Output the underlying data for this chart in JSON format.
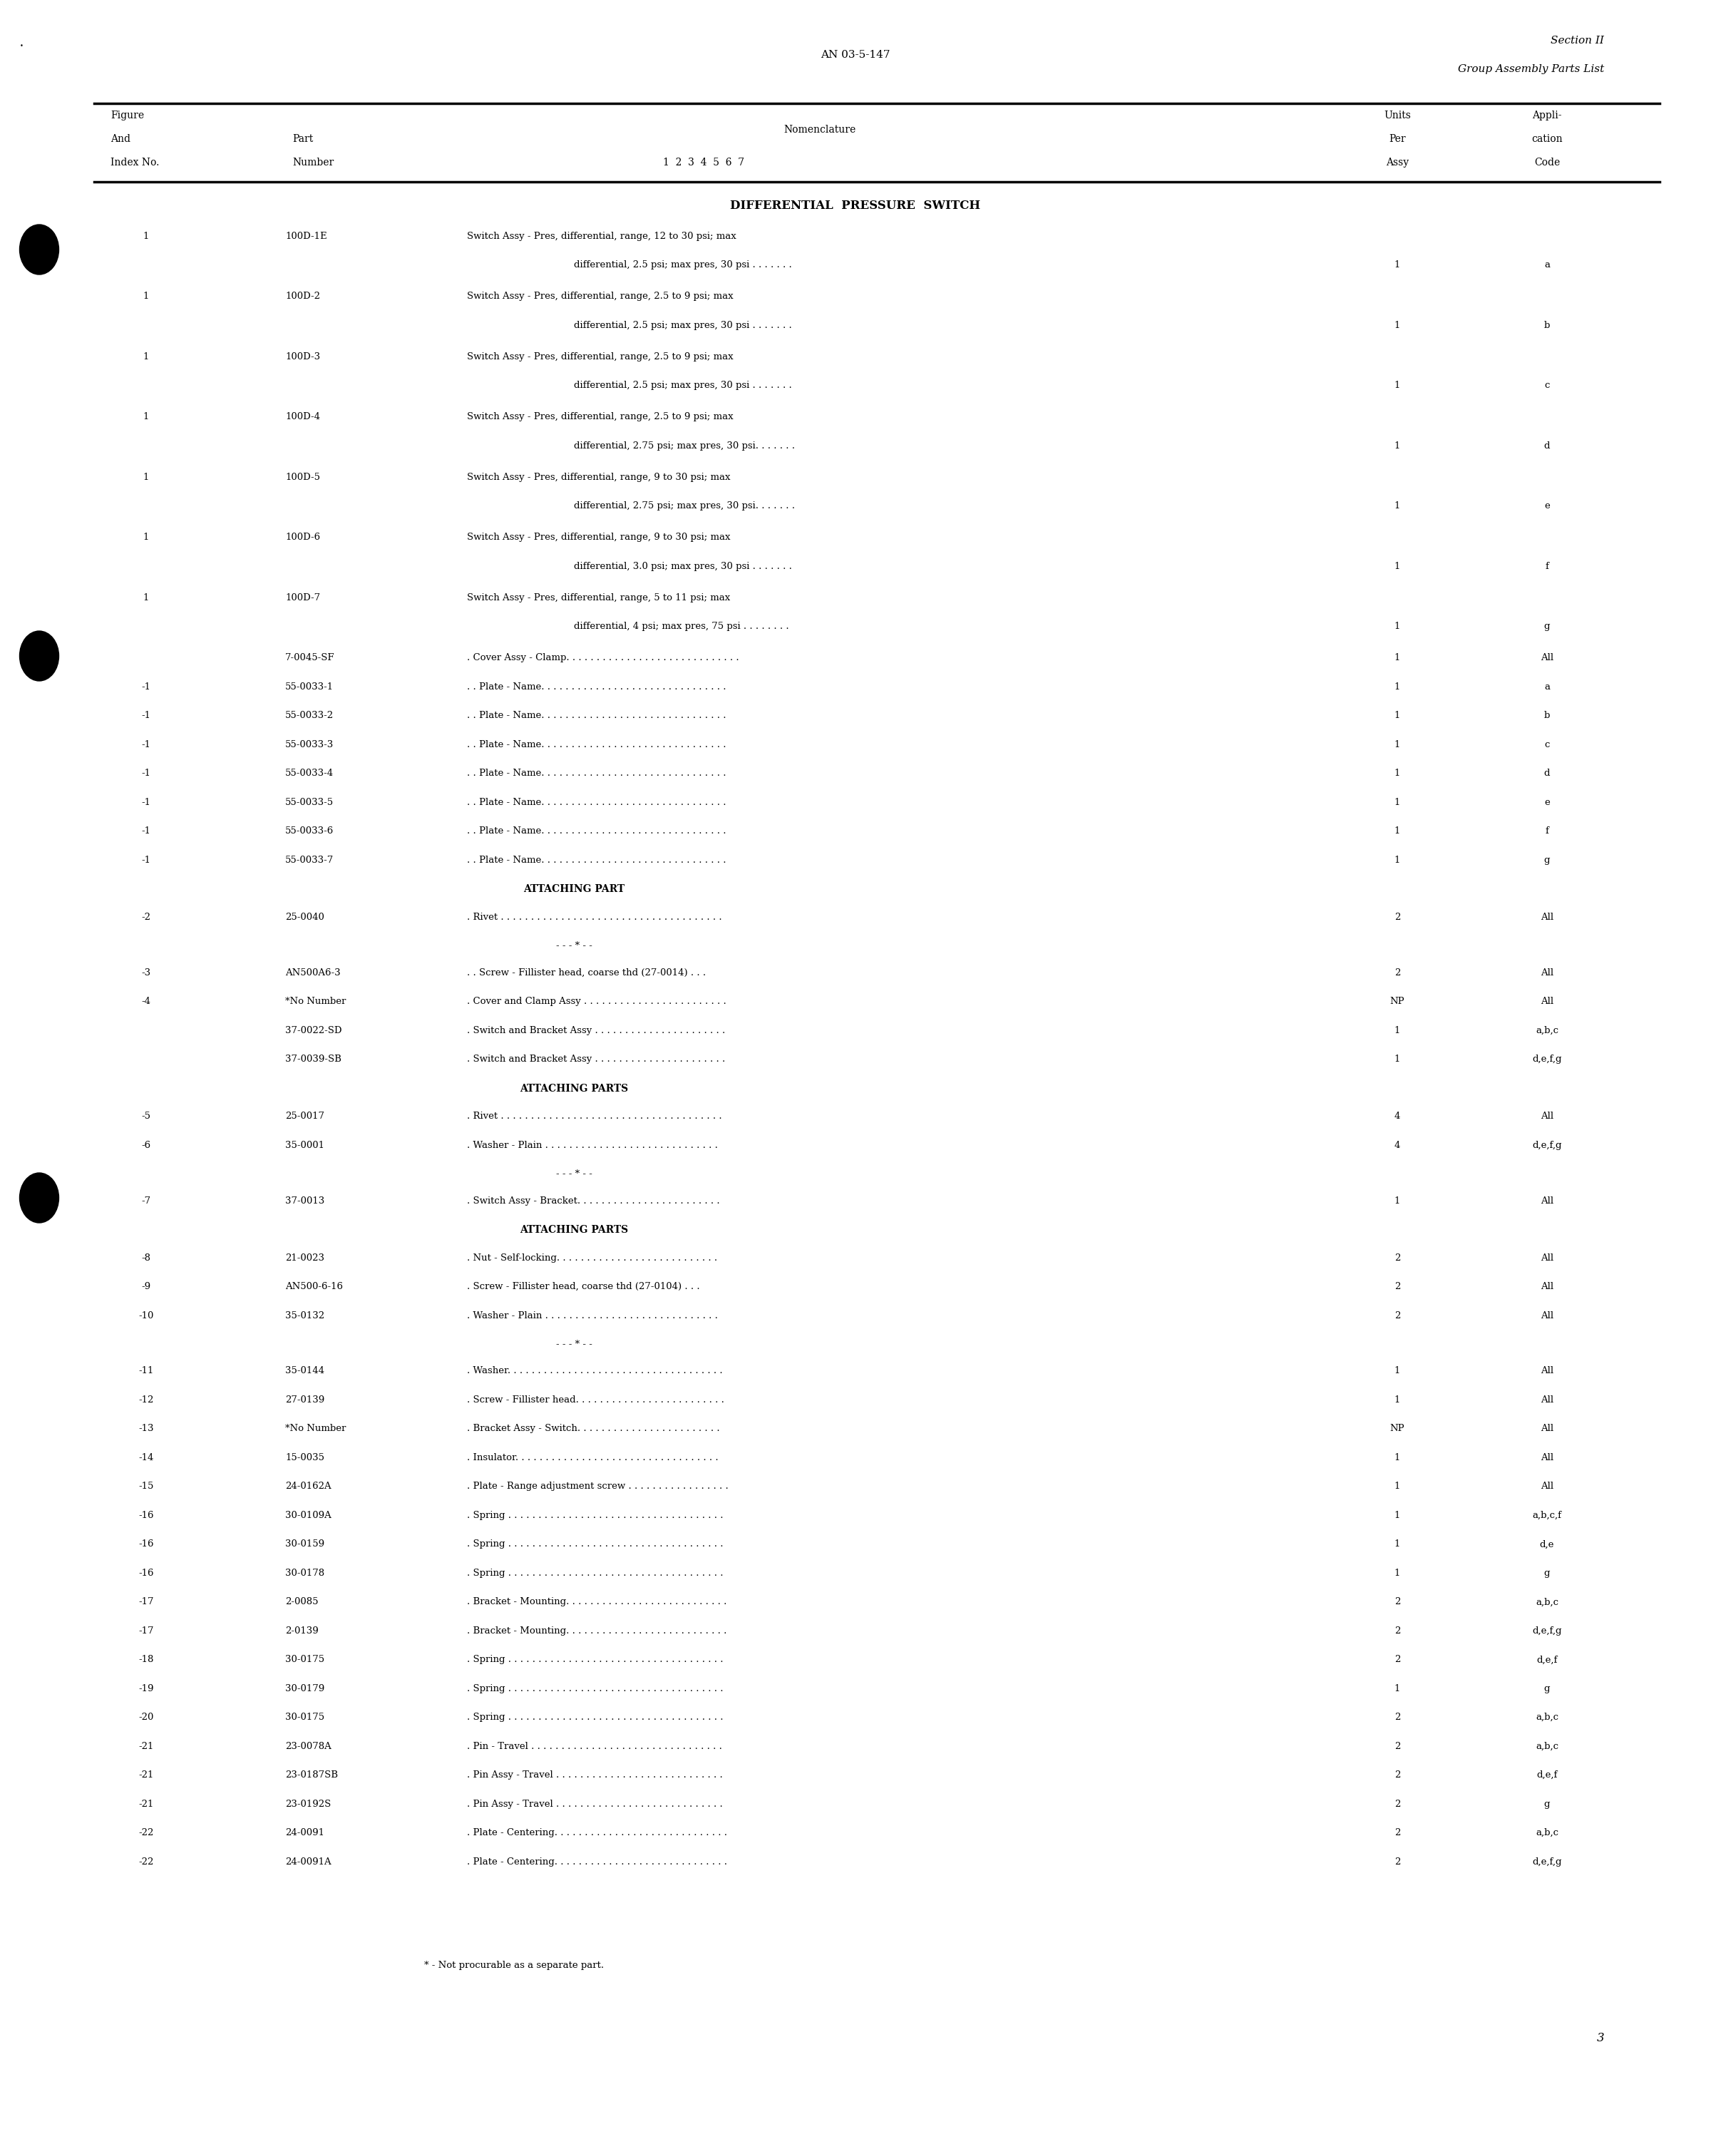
{
  "page_header_center": "AN 03-5-147",
  "page_header_right_line1": "Section II",
  "page_header_right_line2": "Group Assembly Parts List",
  "page_number": "3",
  "table_title": "DIFFERENTIAL  PRESSURE  SWITCH",
  "col_headers": {
    "fig_and_index": [
      "Figure",
      "And",
      "Index No."
    ],
    "part_number": [
      "Part",
      "Number"
    ],
    "nomenclature_label": "Nomenclature",
    "nomenclature_numbers": "1  2  3  4  5  6  7",
    "units_per_assy": [
      "Units",
      "Per",
      "Assy"
    ],
    "appli_cation_code": [
      "Appli-",
      "cation",
      "Code"
    ]
  },
  "rows": [
    {
      "fig": "1",
      "part": "100D-1E",
      "nom": "Switch Assy - Pres, differential, range, 12 to 30 psi; max",
      "nom2": "differential, 2.5 psi; max pres, 30 psi . . . . . . .",
      "units": "1",
      "app": "a"
    },
    {
      "fig": "1",
      "part": "100D-2",
      "nom": "Switch Assy - Pres, differential, range, 2.5 to 9 psi; max",
      "nom2": "differential, 2.5 psi; max pres, 30 psi . . . . . . .",
      "units": "1",
      "app": "b"
    },
    {
      "fig": "1",
      "part": "100D-3",
      "nom": "Switch Assy - Pres, differential, range, 2.5 to 9 psi; max",
      "nom2": "differential, 2.5 psi; max pres, 30 psi . . . . . . .",
      "units": "1",
      "app": "c"
    },
    {
      "fig": "1",
      "part": "100D-4",
      "nom": "Switch Assy - Pres, differential, range, 2.5 to 9 psi; max",
      "nom2": "differential, 2.75 psi; max pres, 30 psi. . . . . . .",
      "units": "1",
      "app": "d"
    },
    {
      "fig": "1",
      "part": "100D-5",
      "nom": "Switch Assy - Pres, differential, range, 9 to 30 psi; max",
      "nom2": "differential, 2.75 psi; max pres, 30 psi. . . . . . .",
      "units": "1",
      "app": "e"
    },
    {
      "fig": "1",
      "part": "100D-6",
      "nom": "Switch Assy - Pres, differential, range, 9 to 30 psi; max",
      "nom2": "differential, 3.0 psi; max pres, 30 psi . . . . . . .",
      "units": "1",
      "app": "f"
    },
    {
      "fig": "1",
      "part": "100D-7",
      "nom": "Switch Assy - Pres, differential, range, 5 to 11 psi; max",
      "nom2": "differential, 4 psi; max pres, 75 psi . . . . . . . .",
      "units": "1",
      "app": "g"
    },
    {
      "fig": "",
      "part": "7-0045-SF",
      "nom": ". Cover Assy - Clamp. . . . . . . . . . . . . . . . . . . . . . . . . . . . .",
      "nom2": "",
      "units": "1",
      "app": "All"
    },
    {
      "fig": "-1",
      "part": "55-0033-1",
      "nom": ". . Plate - Name. . . . . . . . . . . . . . . . . . . . . . . . . . . . . . .",
      "nom2": "",
      "units": "1",
      "app": "a"
    },
    {
      "fig": "-1",
      "part": "55-0033-2",
      "nom": ". . Plate - Name. . . . . . . . . . . . . . . . . . . . . . . . . . . . . . .",
      "nom2": "",
      "units": "1",
      "app": "b"
    },
    {
      "fig": "-1",
      "part": "55-0033-3",
      "nom": ". . Plate - Name. . . . . . . . . . . . . . . . . . . . . . . . . . . . . . .",
      "nom2": "",
      "units": "1",
      "app": "c"
    },
    {
      "fig": "-1",
      "part": "55-0033-4",
      "nom": ". . Plate - Name. . . . . . . . . . . . . . . . . . . . . . . . . . . . . . .",
      "nom2": "",
      "units": "1",
      "app": "d"
    },
    {
      "fig": "-1",
      "part": "55-0033-5",
      "nom": ". . Plate - Name. . . . . . . . . . . . . . . . . . . . . . . . . . . . . . .",
      "nom2": "",
      "units": "1",
      "app": "e"
    },
    {
      "fig": "-1",
      "part": "55-0033-6",
      "nom": ". . Plate - Name. . . . . . . . . . . . . . . . . . . . . . . . . . . . . . .",
      "nom2": "",
      "units": "1",
      "app": "f"
    },
    {
      "fig": "-1",
      "part": "55-0033-7",
      "nom": ". . Plate - Name. . . . . . . . . . . . . . . . . . . . . . . . . . . . . . .",
      "nom2": "",
      "units": "1",
      "app": "g"
    },
    {
      "fig": "",
      "part": "",
      "nom": "ATTACHING PART",
      "nom2": "",
      "units": "",
      "app": "",
      "section_header": true
    },
    {
      "fig": "-2",
      "part": "25-0040",
      "nom": ". Rivet . . . . . . . . . . . . . . . . . . . . . . . . . . . . . . . . . . . . .",
      "nom2": "",
      "units": "2",
      "app": "All"
    },
    {
      "fig": "",
      "part": "",
      "nom": "- - - * - -",
      "nom2": "",
      "units": "",
      "app": "",
      "separator": true
    },
    {
      "fig": "-3",
      "part": "AN500A6-3",
      "nom": ". . Screw - Fillister head, coarse thd (27-0014) . . .",
      "nom2": "",
      "units": "2",
      "app": "All"
    },
    {
      "fig": "-4",
      "part": "*No Number",
      "nom": ". Cover and Clamp Assy . . . . . . . . . . . . . . . . . . . . . . . .",
      "nom2": "",
      "units": "NP",
      "app": "All"
    },
    {
      "fig": "",
      "part": "37-0022-SD",
      "nom": ". Switch and Bracket Assy . . . . . . . . . . . . . . . . . . . . . .",
      "nom2": "",
      "units": "1",
      "app": "a,b,c"
    },
    {
      "fig": "",
      "part": "37-0039-SB",
      "nom": ". Switch and Bracket Assy . . . . . . . . . . . . . . . . . . . . . .",
      "nom2": "",
      "units": "1",
      "app": "d,e,f,g"
    },
    {
      "fig": "",
      "part": "",
      "nom": "ATTACHING PARTS",
      "nom2": "",
      "units": "",
      "app": "",
      "section_header": true
    },
    {
      "fig": "-5",
      "part": "25-0017",
      "nom": ". Rivet . . . . . . . . . . . . . . . . . . . . . . . . . . . . . . . . . . . . .",
      "nom2": "",
      "units": "4",
      "app": "All"
    },
    {
      "fig": "-6",
      "part": "35-0001",
      "nom": ". Washer - Plain . . . . . . . . . . . . . . . . . . . . . . . . . . . . .",
      "nom2": "",
      "units": "4",
      "app": "d,e,f,g"
    },
    {
      "fig": "",
      "part": "",
      "nom": "- - - * - -",
      "nom2": "",
      "units": "",
      "app": "",
      "separator": true
    },
    {
      "fig": "-7",
      "part": "37-0013",
      "nom": ". Switch Assy - Bracket. . . . . . . . . . . . . . . . . . . . . . . .",
      "nom2": "",
      "units": "1",
      "app": "All"
    },
    {
      "fig": "",
      "part": "",
      "nom": "ATTACHING PARTS",
      "nom2": "",
      "units": "",
      "app": "",
      "section_header": true
    },
    {
      "fig": "-8",
      "part": "21-0023",
      "nom": ". Nut - Self-locking. . . . . . . . . . . . . . . . . . . . . . . . . . .",
      "nom2": "",
      "units": "2",
      "app": "All"
    },
    {
      "fig": "-9",
      "part": "AN500-6-16",
      "nom": ". Screw - Fillister head, coarse thd (27-0104) . . .",
      "nom2": "",
      "units": "2",
      "app": "All"
    },
    {
      "fig": "-10",
      "part": "35-0132",
      "nom": ". Washer - Plain . . . . . . . . . . . . . . . . . . . . . . . . . . . . .",
      "nom2": "",
      "units": "2",
      "app": "All"
    },
    {
      "fig": "",
      "part": "",
      "nom": "- - - * - -",
      "nom2": "",
      "units": "",
      "app": "",
      "separator": true
    },
    {
      "fig": "-11",
      "part": "35-0144",
      "nom": ". Washer. . . . . . . . . . . . . . . . . . . . . . . . . . . . . . . . . . . .",
      "nom2": "",
      "units": "1",
      "app": "All"
    },
    {
      "fig": "-12",
      "part": "27-0139",
      "nom": ". Screw - Fillister head. . . . . . . . . . . . . . . . . . . . . . . . .",
      "nom2": "",
      "units": "1",
      "app": "All"
    },
    {
      "fig": "-13",
      "part": "*No Number",
      "nom": ". Bracket Assy - Switch. . . . . . . . . . . . . . . . . . . . . . . .",
      "nom2": "",
      "units": "NP",
      "app": "All"
    },
    {
      "fig": "-14",
      "part": "15-0035",
      "nom": ". Insulator. . . . . . . . . . . . . . . . . . . . . . . . . . . . . . . . . .",
      "nom2": "",
      "units": "1",
      "app": "All"
    },
    {
      "fig": "-15",
      "part": "24-0162A",
      "nom": ". Plate - Range adjustment screw . . . . . . . . . . . . . . . . .",
      "nom2": "",
      "units": "1",
      "app": "All"
    },
    {
      "fig": "-16",
      "part": "30-0109A",
      "nom": ". Spring . . . . . . . . . . . . . . . . . . . . . . . . . . . . . . . . . . . .",
      "nom2": "",
      "units": "1",
      "app": "a,b,c,f"
    },
    {
      "fig": "-16",
      "part": "30-0159",
      "nom": ". Spring . . . . . . . . . . . . . . . . . . . . . . . . . . . . . . . . . . . .",
      "nom2": "",
      "units": "1",
      "app": "d,e"
    },
    {
      "fig": "-16",
      "part": "30-0178",
      "nom": ". Spring . . . . . . . . . . . . . . . . . . . . . . . . . . . . . . . . . . . .",
      "nom2": "",
      "units": "1",
      "app": "g"
    },
    {
      "fig": "-17",
      "part": "2-0085",
      "nom": ". Bracket - Mounting. . . . . . . . . . . . . . . . . . . . . . . . . . .",
      "nom2": "",
      "units": "2",
      "app": "a,b,c"
    },
    {
      "fig": "-17",
      "part": "2-0139",
      "nom": ". Bracket - Mounting. . . . . . . . . . . . . . . . . . . . . . . . . . .",
      "nom2": "",
      "units": "2",
      "app": "d,e,f,g"
    },
    {
      "fig": "-18",
      "part": "30-0175",
      "nom": ". Spring . . . . . . . . . . . . . . . . . . . . . . . . . . . . . . . . . . . .",
      "nom2": "",
      "units": "2",
      "app": "d,e,f"
    },
    {
      "fig": "-19",
      "part": "30-0179",
      "nom": ". Spring . . . . . . . . . . . . . . . . . . . . . . . . . . . . . . . . . . . .",
      "nom2": "",
      "units": "1",
      "app": "g"
    },
    {
      "fig": "-20",
      "part": "30-0175",
      "nom": ". Spring . . . . . . . . . . . . . . . . . . . . . . . . . . . . . . . . . . . .",
      "nom2": "",
      "units": "2",
      "app": "a,b,c"
    },
    {
      "fig": "-21",
      "part": "23-0078A",
      "nom": ". Pin - Travel . . . . . . . . . . . . . . . . . . . . . . . . . . . . . . . .",
      "nom2": "",
      "units": "2",
      "app": "a,b,c"
    },
    {
      "fig": "-21",
      "part": "23-0187SB",
      "nom": ". Pin Assy - Travel . . . . . . . . . . . . . . . . . . . . . . . . . . . .",
      "nom2": "",
      "units": "2",
      "app": "d,e,f"
    },
    {
      "fig": "-21",
      "part": "23-0192S",
      "nom": ". Pin Assy - Travel . . . . . . . . . . . . . . . . . . . . . . . . . . . .",
      "nom2": "",
      "units": "2",
      "app": "g"
    },
    {
      "fig": "-22",
      "part": "24-0091",
      "nom": ". Plate - Centering. . . . . . . . . . . . . . . . . . . . . . . . . . . . .",
      "nom2": "",
      "units": "2",
      "app": "a,b,c"
    },
    {
      "fig": "-22",
      "part": "24-0091A",
      "nom": ". Plate - Centering. . . . . . . . . . . . . . . . . . . . . . . . . . . . .",
      "nom2": "",
      "units": "2",
      "app": "d,e,f,g"
    }
  ],
  "footnote": "* - Not procurable as a separate part.",
  "bg_color": "#ffffff",
  "text_color": "#000000",
  "font_family": "serif"
}
